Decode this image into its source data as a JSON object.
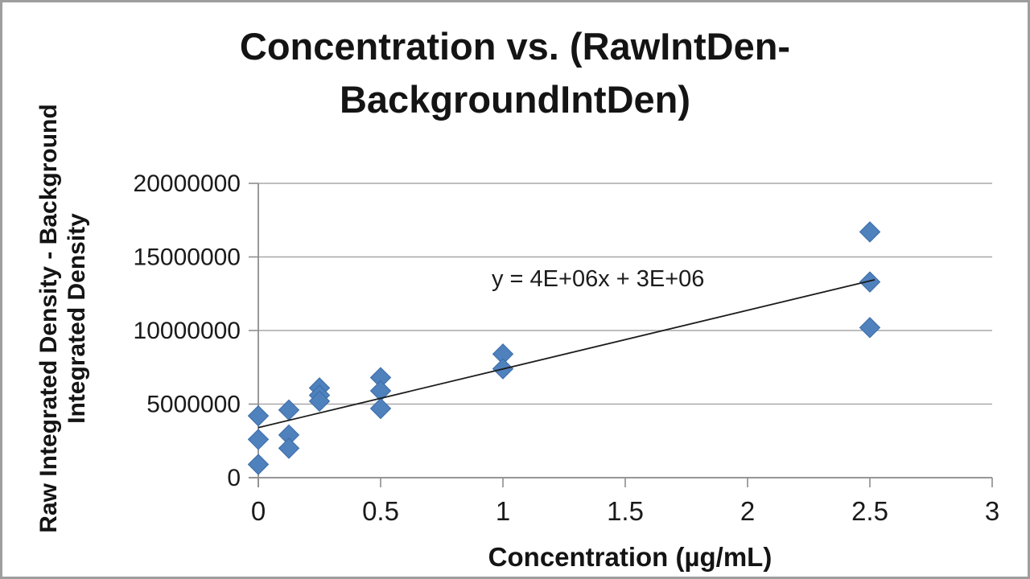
{
  "window": {
    "frame_color": "#9e9e9e",
    "background": "#ffffff"
  },
  "chart_data": {
    "type": "scatter",
    "title": "Concentration vs. (RawIntDen-BackgroundIntDen)",
    "title_lines": [
      "Concentration vs. (RawIntDen-",
      "BackgroundIntDen)"
    ],
    "xlabel": "Concentration (µg/mL)",
    "ylabel": "Raw Integrated Density - Background Integrated Density",
    "ylabel_lines": [
      "Raw Integrated Density - Background",
      "Integrated Density"
    ],
    "xlim": [
      0,
      3
    ],
    "ylim": [
      0,
      20000000
    ],
    "x_ticks": [
      0,
      0.5,
      1,
      1.5,
      2,
      2.5,
      3
    ],
    "x_tick_labels": [
      "0",
      "0.5",
      "1",
      "1.5",
      "2",
      "2.5",
      "3"
    ],
    "y_ticks": [
      0,
      5000000,
      10000000,
      15000000,
      20000000
    ],
    "y_tick_labels": [
      "0",
      "5000000",
      "10000000",
      "15000000",
      "20000000"
    ],
    "grid": "horizontal-only",
    "legend": "none",
    "series": [
      {
        "name": "RawIntDen-BackgroundIntDen",
        "marker": "diamond",
        "color": "#4f81bd",
        "marker_stroke": "#3a6ca8",
        "points": [
          {
            "x": 0,
            "y": 4200000
          },
          {
            "x": 0,
            "y": 2600000
          },
          {
            "x": 0,
            "y": 900000
          },
          {
            "x": 0.125,
            "y": 4600000
          },
          {
            "x": 0.125,
            "y": 2900000
          },
          {
            "x": 0.125,
            "y": 2000000
          },
          {
            "x": 0.25,
            "y": 6100000
          },
          {
            "x": 0.25,
            "y": 5600000
          },
          {
            "x": 0.25,
            "y": 5200000
          },
          {
            "x": 0.5,
            "y": 6800000
          },
          {
            "x": 0.5,
            "y": 5900000
          },
          {
            "x": 0.5,
            "y": 4700000
          },
          {
            "x": 1,
            "y": 8400000
          },
          {
            "x": 1,
            "y": 7400000
          },
          {
            "x": 2.5,
            "y": 16700000
          },
          {
            "x": 2.5,
            "y": 13300000
          },
          {
            "x": 2.5,
            "y": 10200000
          }
        ]
      }
    ],
    "trendline": {
      "equation": "y = 4E+06x + 3E+06",
      "slope": 4000000,
      "intercept": 3000000,
      "color": "#1c1c1c",
      "x_start": 0,
      "y_start": 3400000,
      "x_end": 2.52,
      "y_end": 13450000
    },
    "colors": {
      "gridline": "#a8a8a8",
      "axis": "#8e8e8e",
      "tick_text": "#1a1a1a"
    }
  }
}
